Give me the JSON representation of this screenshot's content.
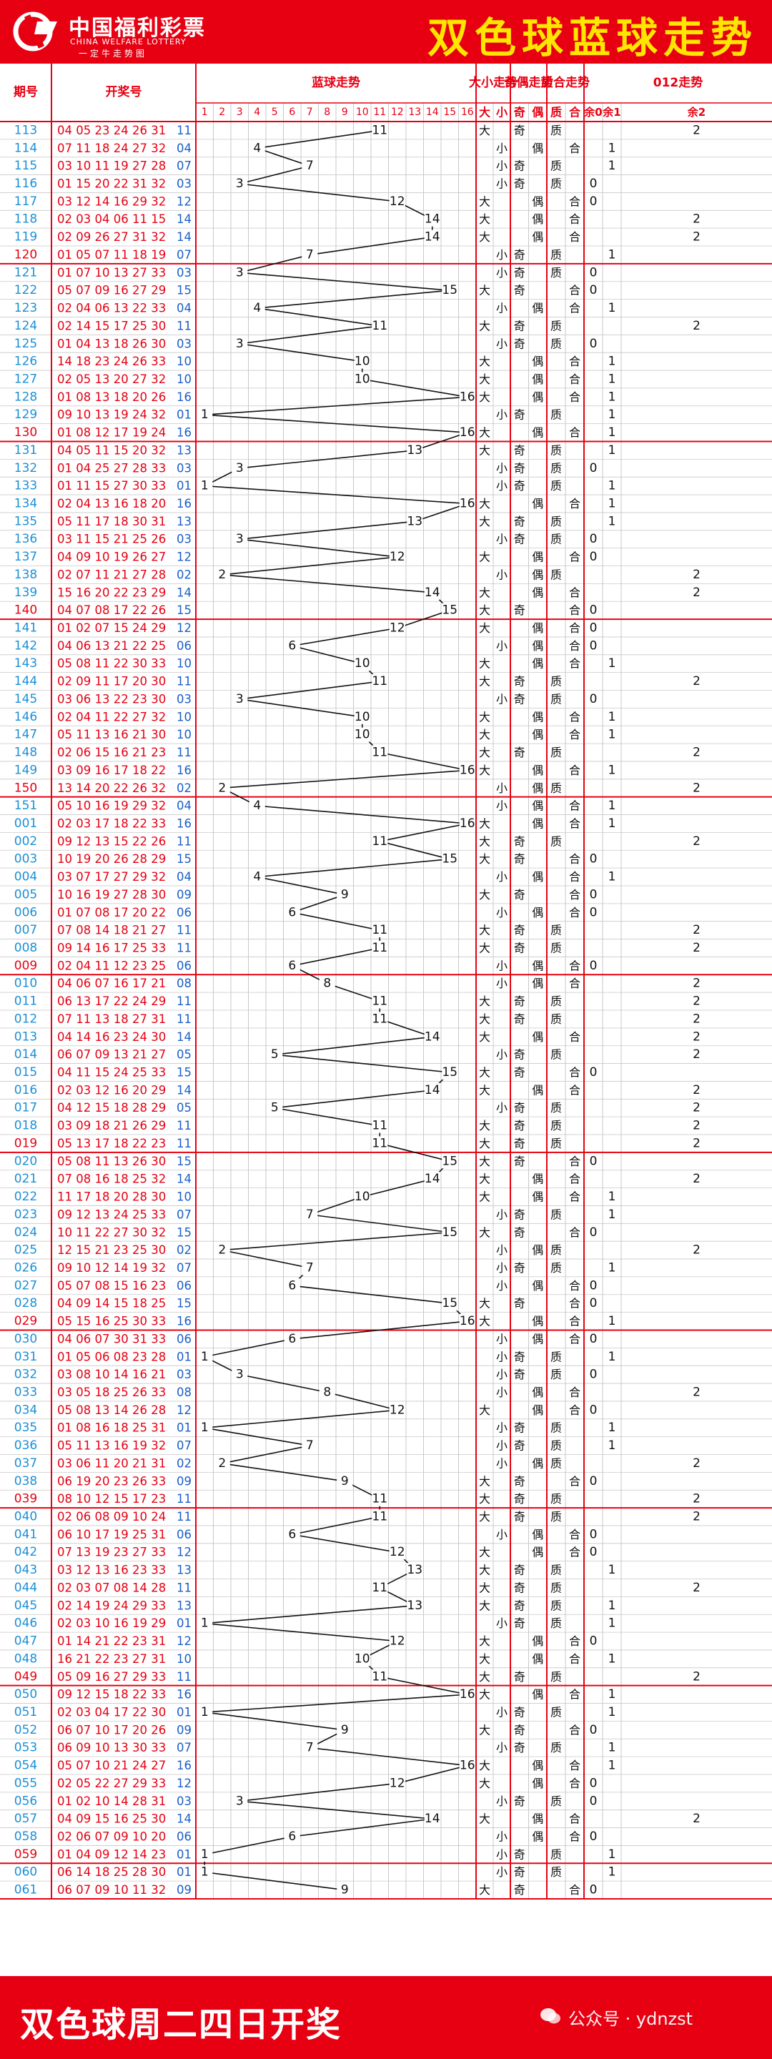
{
  "header": {
    "logo_cn": "中国福利彩票",
    "logo_en": "CHINA WELFARE LOTTERY",
    "logo_sub": "一定牛走势图",
    "title": "双色球蓝球走势"
  },
  "footer": {
    "text": "双色球周二四日开奖",
    "watermark": "公众号 · ydnzst"
  },
  "colors": {
    "brand_red": "#e60012",
    "title_yellow": "#ffe600",
    "issue_blue": "#1b8fd6",
    "blue_number": "#1b5fc7",
    "grid": "#c8c8c8"
  },
  "chart_data": {
    "type": "table",
    "columns": {
      "issue": "期号",
      "numbers": "开奖号",
      "blue_trend": "蓝球走势",
      "size": "大小走势",
      "parity": "奇偶走势",
      "prime": "质合走势",
      "mod3": "012走势"
    },
    "sub_headers": {
      "blue": [
        "1",
        "2",
        "3",
        "4",
        "5",
        "6",
        "7",
        "8",
        "9",
        "10",
        "11",
        "12",
        "13",
        "14",
        "15",
        "16"
      ],
      "size": [
        "大",
        "小"
      ],
      "parity": [
        "奇",
        "偶"
      ],
      "prime": [
        "质",
        "合"
      ],
      "mod3": [
        "余0",
        "余1",
        "余2"
      ]
    },
    "rows": [
      [
        "113",
        "04 05 23 24 26 31",
        "11"
      ],
      [
        "114",
        "07 11 18 24 27 32",
        "04"
      ],
      [
        "115",
        "03 10 11 19 27 28",
        "07"
      ],
      [
        "116",
        "01 15 20 22 31 32",
        "03"
      ],
      [
        "117",
        "03 12 14 16 29 32",
        "12"
      ],
      [
        "118",
        "02 03 04 06 11 15",
        "14"
      ],
      [
        "119",
        "02 09 26 27 31 32",
        "14"
      ],
      [
        "120",
        "01 05 07 11 18 19",
        "07"
      ],
      [
        "121",
        "01 07 10 13 27 33",
        "03"
      ],
      [
        "122",
        "05 07 09 16 27 29",
        "15"
      ],
      [
        "123",
        "02 04 06 13 22 33",
        "04"
      ],
      [
        "124",
        "02 14 15 17 25 30",
        "11"
      ],
      [
        "125",
        "01 04 13 18 26 30",
        "03"
      ],
      [
        "126",
        "14 18 23 24 26 33",
        "10"
      ],
      [
        "127",
        "02 05 13 20 27 32",
        "10"
      ],
      [
        "128",
        "01 08 13 18 20 26",
        "16"
      ],
      [
        "129",
        "09 10 13 19 24 32",
        "01"
      ],
      [
        "130",
        "01 08 12 17 19 24",
        "16"
      ],
      [
        "131",
        "04 05 11 15 20 32",
        "13"
      ],
      [
        "132",
        "01 04 25 27 28 33",
        "03"
      ],
      [
        "133",
        "01 11 15 27 30 33",
        "01"
      ],
      [
        "134",
        "02 04 13 16 18 20",
        "16"
      ],
      [
        "135",
        "05 11 17 18 30 31",
        "13"
      ],
      [
        "136",
        "03 11 15 21 25 26",
        "03"
      ],
      [
        "137",
        "04 09 10 19 26 27",
        "12"
      ],
      [
        "138",
        "02 07 11 21 27 28",
        "02"
      ],
      [
        "139",
        "15 16 20 22 23 29",
        "14"
      ],
      [
        "140",
        "04 07 08 17 22 26",
        "15"
      ],
      [
        "141",
        "01 02 07 15 24 29",
        "12"
      ],
      [
        "142",
        "04 06 13 21 22 25",
        "06"
      ],
      [
        "143",
        "05 08 11 22 30 33",
        "10"
      ],
      [
        "144",
        "02 09 11 17 20 30",
        "11"
      ],
      [
        "145",
        "03 06 13 22 23 30",
        "03"
      ],
      [
        "146",
        "02 04 11 22 27 32",
        "10"
      ],
      [
        "147",
        "05 11 13 16 21 30",
        "10"
      ],
      [
        "148",
        "02 06 15 16 21 23",
        "11"
      ],
      [
        "149",
        "03 09 16 17 18 22",
        "16"
      ],
      [
        "150",
        "13 14 20 22 26 32",
        "02"
      ],
      [
        "151",
        "05 10 16 19 29 32",
        "04"
      ],
      [
        "001",
        "02 03 17 18 22 33",
        "16"
      ],
      [
        "002",
        "09 12 13 15 22 26",
        "11"
      ],
      [
        "003",
        "10 19 20 26 28 29",
        "15"
      ],
      [
        "004",
        "03 07 17 27 29 32",
        "04"
      ],
      [
        "005",
        "10 16 19 27 28 30",
        "09"
      ],
      [
        "006",
        "01 07 08 17 20 22",
        "06"
      ],
      [
        "007",
        "07 08 14 18 21 27",
        "11"
      ],
      [
        "008",
        "09 14 16 17 25 33",
        "11"
      ],
      [
        "009",
        "02 04 11 12 23 25",
        "06"
      ],
      [
        "010",
        "04 06 07 16 17 21",
        "08"
      ],
      [
        "011",
        "06 13 17 22 24 29",
        "11"
      ],
      [
        "012",
        "07 11 13 18 27 31",
        "11"
      ],
      [
        "013",
        "04 14 16 23 24 30",
        "14"
      ],
      [
        "014",
        "06 07 09 13 21 27",
        "05"
      ],
      [
        "015",
        "04 11 15 24 25 33",
        "15"
      ],
      [
        "016",
        "02 03 12 16 20 29",
        "14"
      ],
      [
        "017",
        "04 12 15 18 28 29",
        "05"
      ],
      [
        "018",
        "03 09 18 21 26 29",
        "11"
      ],
      [
        "019",
        "05 13 17 18 22 23",
        "11"
      ],
      [
        "020",
        "05 08 11 13 26 30",
        "15"
      ],
      [
        "021",
        "07 08 16 18 25 32",
        "14"
      ],
      [
        "022",
        "11 17 18 20 28 30",
        "10"
      ],
      [
        "023",
        "09 12 13 24 25 33",
        "07"
      ],
      [
        "024",
        "10 11 22 27 30 32",
        "15"
      ],
      [
        "025",
        "12 15 21 23 25 30",
        "02"
      ],
      [
        "026",
        "09 10 12 14 19 32",
        "07"
      ],
      [
        "027",
        "05 07 08 15 16 23",
        "06"
      ],
      [
        "028",
        "04 09 14 15 18 25",
        "15"
      ],
      [
        "029",
        "05 15 16 25 30 33",
        "16"
      ],
      [
        "030",
        "04 06 07 30 31 33",
        "06"
      ],
      [
        "031",
        "01 05 06 08 23 28",
        "01"
      ],
      [
        "032",
        "03 08 10 14 16 21",
        "03"
      ],
      [
        "033",
        "03 05 18 25 26 33",
        "08"
      ],
      [
        "034",
        "05 08 13 14 26 28",
        "12"
      ],
      [
        "035",
        "01 08 16 18 25 31",
        "01"
      ],
      [
        "036",
        "05 11 13 16 19 32",
        "07"
      ],
      [
        "037",
        "03 06 11 20 21 31",
        "02"
      ],
      [
        "038",
        "06 19 20 23 26 33",
        "09"
      ],
      [
        "039",
        "08 10 12 15 17 23",
        "11"
      ],
      [
        "040",
        "02 06 08 09 10 24",
        "11"
      ],
      [
        "041",
        "06 10 17 19 25 31",
        "06"
      ],
      [
        "042",
        "07 13 19 23 27 33",
        "12"
      ],
      [
        "043",
        "03 12 13 16 23 33",
        "13"
      ],
      [
        "044",
        "02 03 07 08 14 28",
        "11"
      ],
      [
        "045",
        "02 14 19 24 29 33",
        "13"
      ],
      [
        "046",
        "02 03 10 16 19 29",
        "01"
      ],
      [
        "047",
        "01 14 21 22 23 31",
        "12"
      ],
      [
        "048",
        "16 21 22 23 27 31",
        "10"
      ],
      [
        "049",
        "05 09 16 27 29 33",
        "11"
      ],
      [
        "050",
        "09 12 15 18 22 33",
        "16"
      ],
      [
        "051",
        "02 03 04 17 22 30",
        "01"
      ],
      [
        "052",
        "06 07 10 17 20 26",
        "09"
      ],
      [
        "053",
        "06 09 10 13 30 33",
        "07"
      ],
      [
        "054",
        "05 07 10 21 24 27",
        "16"
      ],
      [
        "055",
        "02 05 22 27 29 33",
        "12"
      ],
      [
        "056",
        "01 02 10 14 28 31",
        "03"
      ],
      [
        "057",
        "04 09 15 16 25 30",
        "14"
      ],
      [
        "058",
        "02 06 07 09 10 20",
        "06"
      ],
      [
        "059",
        "01 04 09 12 14 23",
        "01"
      ],
      [
        "060",
        "06 14 18 25 28 30",
        "01"
      ],
      [
        "061",
        "06 07 09 10 11 32",
        "09"
      ]
    ]
  }
}
